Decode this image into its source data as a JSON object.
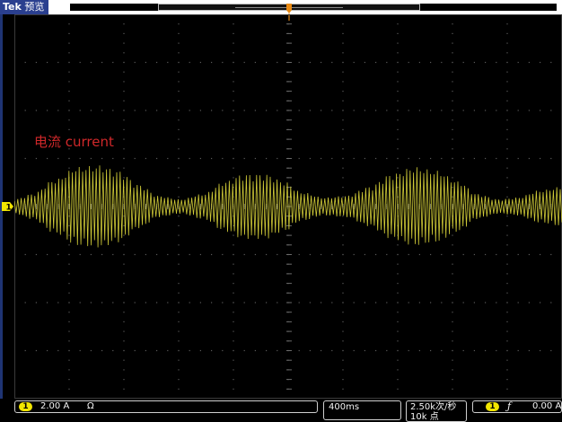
{
  "header": {
    "brand": "Tek",
    "mode": "预览"
  },
  "annotation": {
    "text": "电流 current",
    "color": "#d0282a"
  },
  "channel": {
    "number": "1",
    "scale": "2.00 A",
    "impedance_symbol": "Ω",
    "color": "#f2e600"
  },
  "timebase": {
    "value": "400ms"
  },
  "acquisition": {
    "sample_rate": "2.50k次/秒",
    "record_length": "10k 点"
  },
  "trigger": {
    "source": "1",
    "slope_symbol": "ƒ",
    "level": "0.00 A"
  },
  "waveform": {
    "description_color": "#d9d43a",
    "icon": "trigger-position-arrow-icon"
  }
}
